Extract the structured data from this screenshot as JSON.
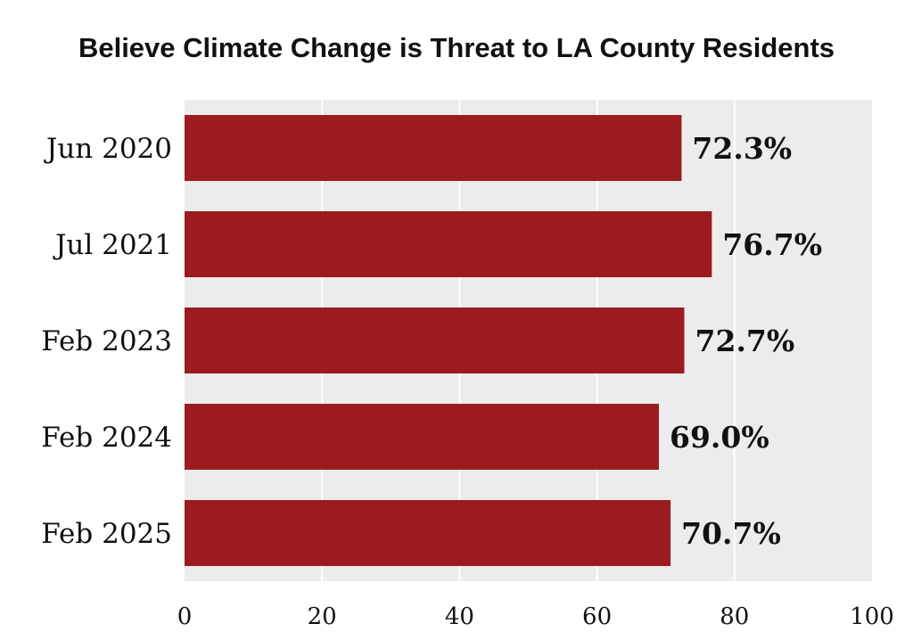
{
  "chart_data": {
    "type": "bar",
    "orientation": "horizontal",
    "title": "Believe Climate Change is Threat to LA County Residents",
    "categories": [
      "Jun 2020",
      "Jul 2021",
      "Feb 2023",
      "Feb 2024",
      "Feb 2025"
    ],
    "values": [
      72.3,
      76.7,
      72.7,
      69.0,
      70.7
    ],
    "value_labels": [
      "72.3%",
      "76.7%",
      "72.7%",
      "69.0%",
      "70.7%"
    ],
    "xlabel": "",
    "ylabel": "",
    "xlim": [
      0,
      100
    ],
    "xticks": [
      0,
      20,
      40,
      60,
      80,
      100
    ],
    "xtick_labels": [
      "0",
      "20",
      "40",
      "60",
      "80",
      "100"
    ],
    "grid": true,
    "colors": {
      "bar": "#9b1b1f",
      "plot_background": "#ececec",
      "gridline": "#ffffff"
    }
  }
}
